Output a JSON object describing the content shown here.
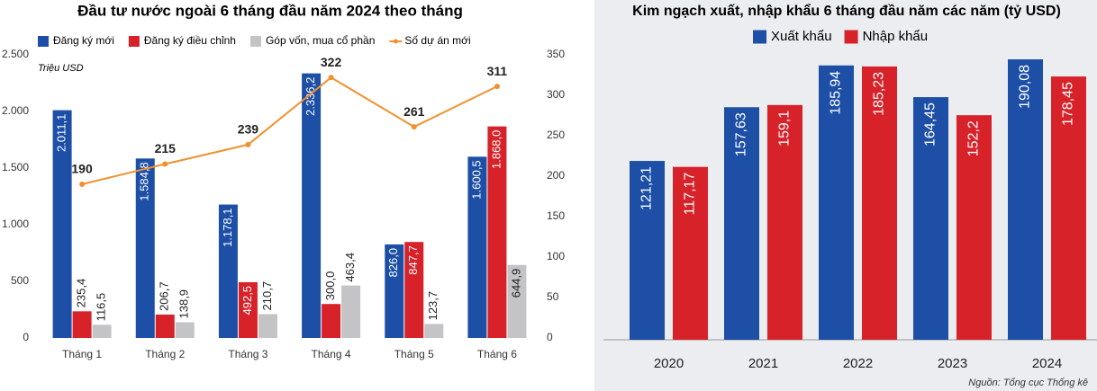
{
  "chart_data": [
    {
      "type": "bar-line",
      "title": "Đầu tư nước ngoài 6 tháng đầu năm 2024 theo tháng",
      "y_label": "Triệu USD",
      "categories": [
        "Tháng 1",
        "Tháng 2",
        "Tháng 3",
        "Tháng 4",
        "Tháng 5",
        "Tháng 6"
      ],
      "series": [
        {
          "name": "Đăng ký mới",
          "color": "#1d4fa6",
          "values": [
            2011.1,
            1584.8,
            1178.1,
            2336.2,
            826.0,
            1600.5
          ],
          "value_labels": [
            "2.011,1",
            "1.584,8",
            "1.178,1",
            "2.336,2",
            "826,0",
            "1.600,5"
          ]
        },
        {
          "name": "Đăng ký điều chỉnh",
          "color": "#d7222a",
          "values": [
            235.4,
            206.7,
            492.5,
            300.0,
            847.7,
            1868.0
          ],
          "value_labels": [
            "235,4",
            "206,7",
            "492,5",
            "300,0",
            "847,7",
            "1.868,0"
          ]
        },
        {
          "name": "Góp vốn, mua cổ phần",
          "color": "#c4c4c6",
          "values": [
            116.5,
            138.9,
            210.7,
            463.4,
            123.7,
            644.9
          ],
          "value_labels": [
            "116,5",
            "138,9",
            "210,7",
            "463,4",
            "123,7",
            "644,9"
          ]
        },
        {
          "name": "Số dự án mới",
          "color": "#f0912e",
          "axis": "y2",
          "values": [
            190,
            215,
            239,
            322,
            261,
            311
          ]
        }
      ],
      "ylim": [
        0,
        2500
      ],
      "yticks": [
        0,
        500,
        {
          "value": 1000,
          "label": "1.000"
        },
        {
          "value": 1500,
          "label": "1.500"
        },
        {
          "value": 2000,
          "label": "2.000"
        },
        {
          "value": 2500,
          "label": "2.500"
        }
      ],
      "y2lim": [
        0,
        350
      ],
      "y2ticks": [
        0,
        50,
        100,
        150,
        200,
        250,
        300,
        350
      ]
    },
    {
      "type": "bar",
      "title": "Kim ngạch xuất, nhập khẩu 6 tháng đầu năm các năm  (tỷ USD)",
      "categories": [
        "2020",
        "2021",
        "2022",
        "2023",
        "2024"
      ],
      "series": [
        {
          "name": "Xuất khẩu",
          "color": "#1d4fa6",
          "values": [
            121.21,
            157.63,
            185.94,
            164.45,
            190.08
          ],
          "value_labels": [
            "121,21",
            "157,63",
            "185,94",
            "164,45",
            "190,08"
          ]
        },
        {
          "name": "Nhập khẩu",
          "color": "#d7222a",
          "values": [
            117.17,
            159.1,
            185.23,
            152.2,
            178.45
          ],
          "value_labels": [
            "117,17",
            "159,1",
            "185,23",
            "152,2",
            "178,45"
          ]
        }
      ],
      "source": "Nguồn: Tổng cục Thống kê"
    }
  ]
}
